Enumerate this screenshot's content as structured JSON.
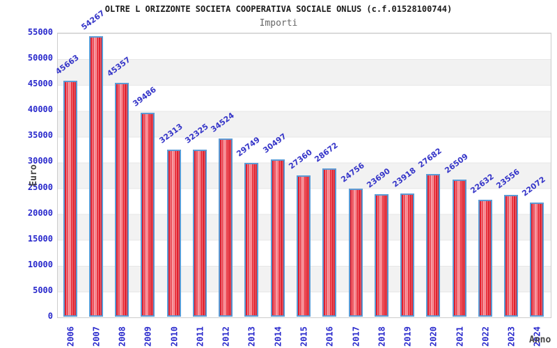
{
  "chart_data": {
    "type": "bar",
    "title": "OLTRE L ORIZZONTE SOCIETA COOPERATIVA SOCIALE ONLUS (c.f.01528100744)",
    "subtitle": "Importi",
    "xlabel": "Anno",
    "ylabel": "Euro",
    "categories": [
      "2006",
      "2007",
      "2008",
      "2009",
      "2010",
      "2011",
      "2012",
      "2013",
      "2014",
      "2015",
      "2016",
      "2017",
      "2018",
      "2019",
      "2020",
      "2021",
      "2022",
      "2023",
      "2024"
    ],
    "values": [
      45663,
      54267,
      45357,
      39486,
      32313,
      32325,
      34524,
      29749,
      30497,
      27360,
      28672,
      24756,
      23690,
      23918,
      27682,
      26509,
      22632,
      23556,
      22072
    ],
    "ylim": [
      0,
      55000
    ],
    "y_ticks": [
      0,
      5000,
      10000,
      15000,
      20000,
      25000,
      30000,
      35000,
      40000,
      45000,
      50000,
      55000
    ],
    "grid": "horizontal alternating bands every 5000",
    "legend": "none",
    "bar_value_labels_rotated": true,
    "x_tick_labels_rotated": true
  },
  "colors": {
    "title": "#1a1a1a",
    "subtitle": "#666666",
    "axis_label": "#2828cc",
    "axis_title": "#444444",
    "value_label": "#3535c8",
    "bar_fill": "#dc0f1f",
    "bar_highlight": "#f9959d",
    "bar_border": "#5b9bd5",
    "band": "#f2f2f2",
    "plot_border": "#cccccc"
  }
}
